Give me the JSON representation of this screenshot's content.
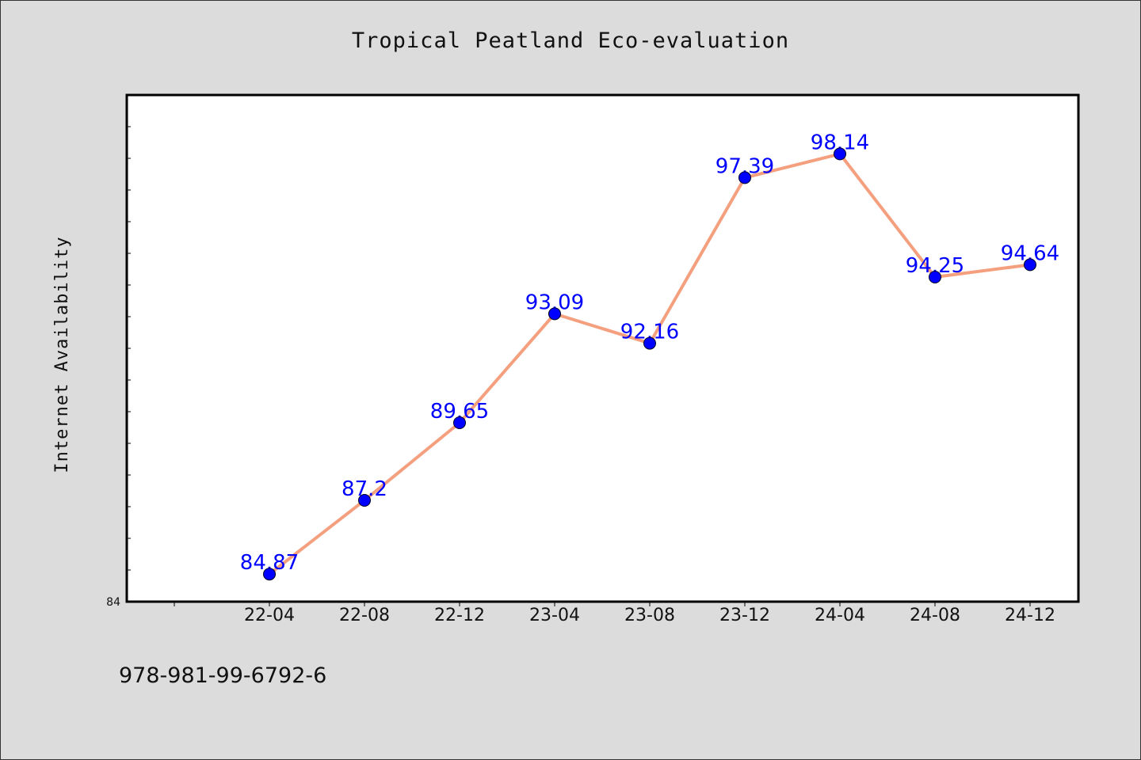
{
  "chart_data": {
    "type": "line",
    "title": "Tropical Peatland Eco-evaluation",
    "xlabel": "",
    "ylabel": "Internet Availability",
    "categories": [
      "22-04",
      "22-08",
      "22-12",
      "23-04",
      "23-08",
      "23-12",
      "24-04",
      "24-08",
      "24-12"
    ],
    "series": [
      {
        "values": [
          84.87,
          87.2,
          89.65,
          93.09,
          92.16,
          97.39,
          98.14,
          94.25,
          94.64
        ]
      }
    ],
    "data_labels": [
      "84.87",
      "87.2",
      "89.65",
      "93.09",
      "92.16",
      "97.39",
      "98.14",
      "94.25",
      "94.64"
    ],
    "y_tick_labels": [
      "84"
    ],
    "ylim": [
      84,
      100
    ],
    "grid": false,
    "legend": "none",
    "colors": {
      "line": "#f4a07e",
      "marker": "#0000ff",
      "label": "#0000ff",
      "plot_background": "#ffffff",
      "page_background": "#dcdcdc"
    }
  },
  "footer": {
    "code": "978-981-99-6792-6"
  }
}
